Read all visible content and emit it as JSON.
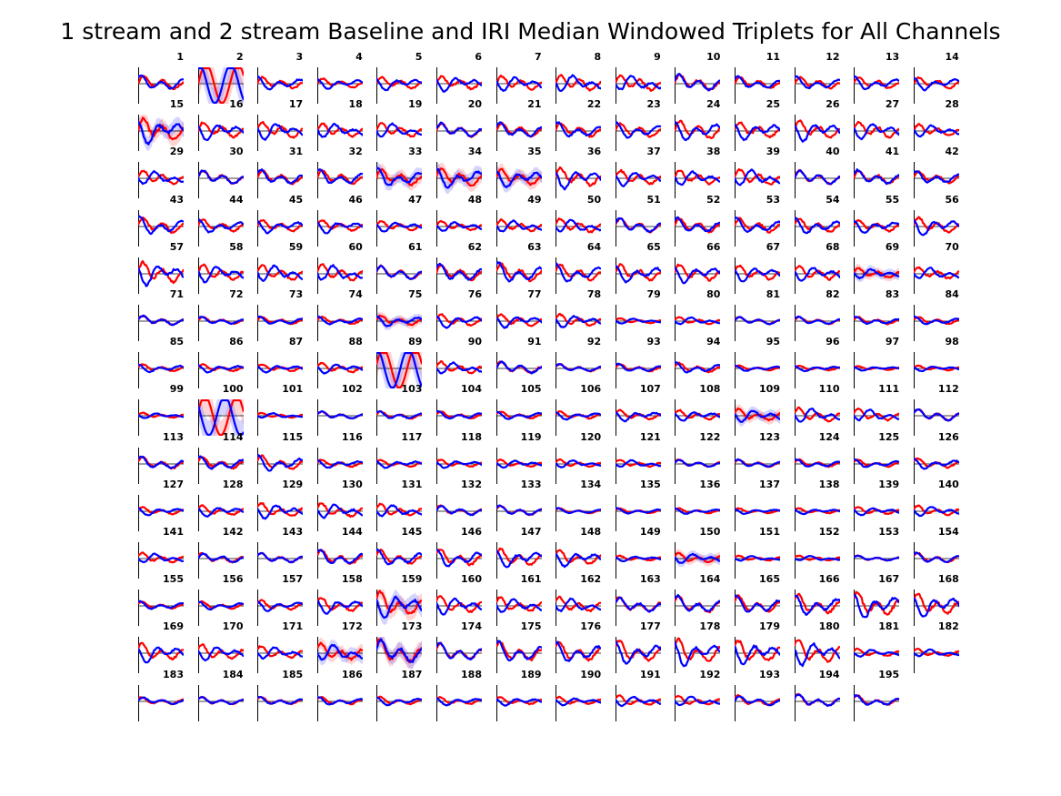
{
  "title": "1 stream and 2 stream Baseline and IRI Median Windowed Triplets for All Channels",
  "chart_data": {
    "type": "line",
    "title": "1 stream and 2 stream Baseline and IRI Median Windowed Triplets for All Channels",
    "xlabel": "",
    "ylabel": "",
    "layout": "small-multiples 14 columns x 14 rows",
    "grid": false,
    "legend": "none",
    "series_colors": {
      "first": "#ff0000",
      "second": "#0000ff"
    },
    "zero_line_color": "#000000",
    "channels": [
      "1",
      "2",
      "3",
      "4",
      "5",
      "6",
      "7",
      "8",
      "9",
      "10",
      "11",
      "12",
      "13",
      "14",
      "15",
      "16",
      "17",
      "18",
      "19",
      "20",
      "21",
      "22",
      "23",
      "24",
      "25",
      "26",
      "27",
      "28",
      "29",
      "30",
      "31",
      "32",
      "33",
      "34",
      "35",
      "36",
      "37",
      "38",
      "39",
      "40",
      "41",
      "42",
      "43",
      "44",
      "45",
      "46",
      "47",
      "48",
      "49",
      "50",
      "51",
      "52",
      "53",
      "54",
      "55",
      "56",
      "57",
      "58",
      "59",
      "60",
      "61",
      "62",
      "63",
      "64",
      "65",
      "66",
      "67",
      "68",
      "69",
      "70",
      "71",
      "72",
      "73",
      "74",
      "75",
      "76",
      "77",
      "78",
      "79",
      "80",
      "81",
      "82",
      "83",
      "84",
      "85",
      "86",
      "87",
      "88",
      "89",
      "90",
      "91",
      "92",
      "93",
      "94",
      "95",
      "96",
      "97",
      "98",
      "99",
      "100",
      "101",
      "102",
      "103",
      "104",
      "105",
      "106",
      "107",
      "108",
      "109",
      "110",
      "111",
      "112",
      "113",
      "114",
      "115",
      "116",
      "117",
      "118",
      "119",
      "120",
      "121",
      "122",
      "123",
      "124",
      "125",
      "126",
      "127",
      "128",
      "129",
      "130",
      "131",
      "132",
      "133",
      "134",
      "135",
      "136",
      "137",
      "138",
      "139",
      "140",
      "141",
      "142",
      "143",
      "144",
      "145",
      "146",
      "147",
      "148",
      "149",
      "150",
      "151",
      "152",
      "153",
      "154",
      "155",
      "156",
      "157",
      "158",
      "159",
      "160",
      "161",
      "162",
      "163",
      "164",
      "165",
      "166",
      "167",
      "168",
      "169",
      "170",
      "171",
      "172",
      "173",
      "174",
      "175",
      "176",
      "177",
      "178",
      "179",
      "180",
      "181",
      "182",
      "183",
      "184",
      "185",
      "186",
      "187",
      "188",
      "189",
      "190",
      "191",
      "192",
      "193",
      "194",
      "195"
    ],
    "amplitude_by_channel": [
      0.5,
      4,
      0.4,
      0.3,
      0.4,
      0.5,
      0.5,
      0.6,
      0.6,
      0.6,
      0.4,
      0.4,
      0.4,
      0.4,
      0.9,
      0.6,
      0.6,
      0.5,
      0.5,
      0.5,
      0.5,
      0.5,
      0.5,
      0.7,
      0.6,
      0.7,
      0.6,
      0.4,
      0.5,
      0.5,
      0.5,
      0.5,
      0.6,
      0.7,
      0.6,
      0.7,
      0.5,
      0.5,
      0.6,
      0.5,
      0.5,
      0.4,
      0.6,
      0.4,
      0.4,
      0.4,
      0.3,
      0.3,
      0.4,
      0.5,
      0.5,
      0.5,
      0.5,
      0.5,
      0.4,
      0.6,
      0.8,
      0.6,
      0.6,
      0.6,
      0.5,
      0.6,
      0.7,
      0.6,
      0.6,
      0.6,
      0.5,
      0.5,
      0.3,
      0.4,
      0.3,
      0.2,
      0.2,
      0.2,
      0.3,
      0.4,
      0.4,
      0.4,
      0.1,
      0.2,
      0.2,
      0.2,
      0.2,
      0.2,
      0.2,
      0.2,
      0.2,
      0.3,
      4,
      0.4,
      0.4,
      0.2,
      0.2,
      0.3,
      0.1,
      0.1,
      0.05,
      0.1,
      0.1,
      4,
      0.1,
      0.2,
      0.2,
      0.2,
      0.2,
      0.2,
      0.3,
      0.3,
      0.4,
      0.5,
      0.4,
      0.4,
      0.4,
      0.4,
      0.5,
      0.2,
      0.2,
      0.2,
      0.2,
      0.2,
      0.2,
      0.2,
      0.2,
      0.2,
      0.2,
      0.3,
      0.2,
      0.3,
      0.5,
      0.5,
      0.4,
      0.3,
      0.3,
      0.1,
      0.1,
      0.1,
      0.1,
      0.1,
      0.2,
      0.3,
      0.3,
      0.3,
      0.3,
      0.5,
      0.5,
      0.6,
      0.6,
      0.5,
      0.1,
      0.3,
      0.1,
      0.1,
      0.1,
      0.3,
      0.2,
      0.2,
      0.3,
      0.5,
      0.9,
      0.6,
      0.5,
      0.5,
      0.5,
      0.6,
      0.6,
      0.7,
      0.9,
      0.8,
      0.6,
      0.5,
      0.4,
      0.6,
      0.9,
      0.6,
      0.7,
      0.7,
      0.8,
      0.9,
      0.8,
      0.9,
      0.2,
      0.2,
      0.2,
      0.2,
      0.2,
      0.2,
      0.2,
      0.2,
      0.2,
      0.2,
      0.3,
      0.3,
      0.3,
      0.4,
      0.3
    ],
    "shaded_band_channels": [
      "2",
      "15",
      "33",
      "34",
      "35",
      "69",
      "75",
      "89",
      "100",
      "109",
      "150",
      "159",
      "172",
      "173"
    ]
  }
}
